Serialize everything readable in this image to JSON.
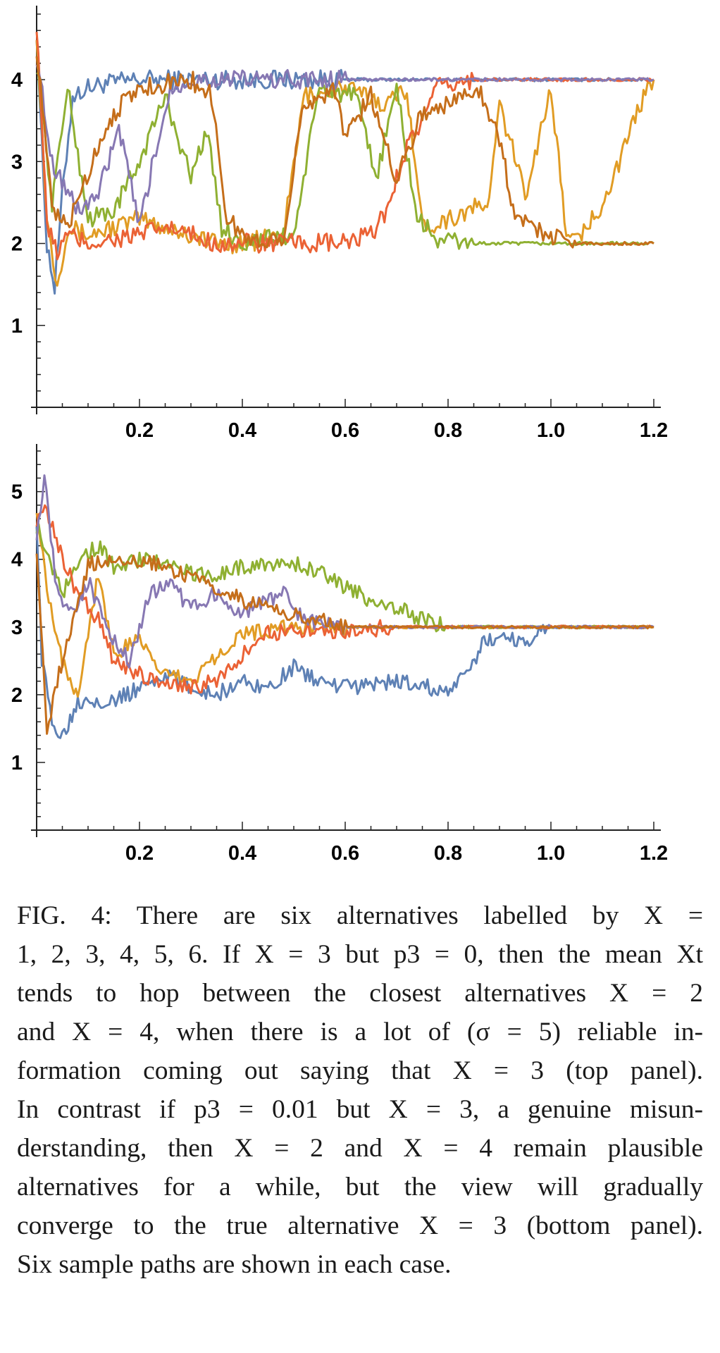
{
  "chart_data": [
    {
      "type": "line",
      "panel": "top",
      "xlim": [
        0,
        1.2
      ],
      "ylim": [
        0,
        4.8
      ],
      "xticks": [
        "0.2",
        "0.4",
        "0.6",
        "0.8",
        "1.0",
        "1.2"
      ],
      "yticks": [
        "1",
        "2",
        "3",
        "4"
      ],
      "grid": false,
      "series": [
        {
          "color": "#5e81b5",
          "points": [
            [
              0,
              4.6
            ],
            [
              0.01,
              3.2
            ],
            [
              0.02,
              2.0
            ],
            [
              0.035,
              1.45
            ],
            [
              0.05,
              2.6
            ],
            [
              0.07,
              3.8
            ],
            [
              0.1,
              3.9
            ],
            [
              0.13,
              3.95
            ],
            [
              0.2,
              4.0
            ],
            [
              0.3,
              4.0
            ],
            [
              0.4,
              4.0
            ],
            [
              0.6,
              4.0
            ],
            [
              0.8,
              4.0
            ],
            [
              1.0,
              4.0
            ],
            [
              1.2,
              4.0
            ]
          ]
        },
        {
          "color": "#e19c24",
          "points": [
            [
              0,
              4.6
            ],
            [
              0.02,
              2.3
            ],
            [
              0.04,
              1.5
            ],
            [
              0.06,
              2.2
            ],
            [
              0.1,
              2.1
            ],
            [
              0.2,
              2.3
            ],
            [
              0.3,
              2.1
            ],
            [
              0.35,
              2.0
            ],
            [
              0.4,
              2.0
            ],
            [
              0.48,
              2.1
            ],
            [
              0.52,
              3.8
            ],
            [
              0.6,
              3.9
            ],
            [
              0.68,
              3.7
            ],
            [
              0.72,
              3.9
            ],
            [
              0.75,
              2.2
            ],
            [
              0.8,
              2.3
            ],
            [
              0.88,
              2.5
            ],
            [
              0.9,
              3.7
            ],
            [
              0.95,
              2.6
            ],
            [
              1.0,
              3.9
            ],
            [
              1.03,
              2.1
            ],
            [
              1.06,
              2.1
            ],
            [
              1.1,
              2.5
            ],
            [
              1.14,
              3.1
            ],
            [
              1.18,
              3.8
            ],
            [
              1.2,
              4.0
            ]
          ]
        },
        {
          "color": "#8fb032",
          "points": [
            [
              0,
              4.2
            ],
            [
              0.03,
              2.5
            ],
            [
              0.06,
              3.9
            ],
            [
              0.1,
              2.3
            ],
            [
              0.15,
              2.4
            ],
            [
              0.2,
              3.0
            ],
            [
              0.25,
              3.8
            ],
            [
              0.3,
              2.8
            ],
            [
              0.33,
              3.4
            ],
            [
              0.36,
              2.2
            ],
            [
              0.4,
              2.0
            ],
            [
              0.5,
              2.1
            ],
            [
              0.55,
              3.9
            ],
            [
              0.62,
              3.8
            ],
            [
              0.66,
              2.8
            ],
            [
              0.7,
              3.9
            ],
            [
              0.74,
              2.3
            ],
            [
              0.78,
              2.05
            ],
            [
              0.85,
              2.0
            ],
            [
              1.0,
              2.0
            ],
            [
              1.2,
              2.0
            ]
          ]
        },
        {
          "color": "#eb6235",
          "points": [
            [
              0,
              4.7
            ],
            [
              0.01,
              3.5
            ],
            [
              0.02,
              2.2
            ],
            [
              0.04,
              1.9
            ],
            [
              0.06,
              2.1
            ],
            [
              0.1,
              2.0
            ],
            [
              0.2,
              2.1
            ],
            [
              0.25,
              2.2
            ],
            [
              0.3,
              2.1
            ],
            [
              0.35,
              2.0
            ],
            [
              0.4,
              2.0
            ],
            [
              0.6,
              2.0
            ],
            [
              0.65,
              2.1
            ],
            [
              0.68,
              2.4
            ],
            [
              0.72,
              3.2
            ],
            [
              0.75,
              3.5
            ],
            [
              0.78,
              3.9
            ],
            [
              0.85,
              4.0
            ],
            [
              1.0,
              4.0
            ],
            [
              1.2,
              4.0
            ]
          ]
        },
        {
          "color": "#8778b3",
          "points": [
            [
              0,
              4.3
            ],
            [
              0.03,
              3.0
            ],
            [
              0.08,
              2.4
            ],
            [
              0.12,
              2.6
            ],
            [
              0.16,
              3.4
            ],
            [
              0.2,
              2.2
            ],
            [
              0.22,
              2.8
            ],
            [
              0.26,
              3.9
            ],
            [
              0.3,
              4.0
            ],
            [
              0.4,
              4.0
            ],
            [
              0.6,
              4.0
            ],
            [
              0.8,
              4.0
            ],
            [
              1.0,
              4.0
            ],
            [
              1.2,
              4.0
            ]
          ]
        },
        {
          "color": "#c56e1a",
          "points": [
            [
              0,
              4.4
            ],
            [
              0.03,
              2.4
            ],
            [
              0.06,
              2.2
            ],
            [
              0.09,
              2.7
            ],
            [
              0.12,
              3.2
            ],
            [
              0.15,
              3.6
            ],
            [
              0.2,
              3.9
            ],
            [
              0.3,
              4.0
            ],
            [
              0.34,
              3.8
            ],
            [
              0.37,
              2.3
            ],
            [
              0.42,
              2.0
            ],
            [
              0.48,
              2.1
            ],
            [
              0.52,
              3.7
            ],
            [
              0.58,
              3.9
            ],
            [
              0.6,
              3.3
            ],
            [
              0.65,
              3.8
            ],
            [
              0.7,
              2.8
            ],
            [
              0.75,
              3.6
            ],
            [
              0.8,
              3.7
            ],
            [
              0.86,
              3.9
            ],
            [
              0.9,
              3.3
            ],
            [
              0.93,
              2.3
            ],
            [
              0.97,
              2.2
            ],
            [
              1.0,
              2.1
            ],
            [
              1.05,
              2.0
            ],
            [
              1.2,
              2.0
            ]
          ]
        }
      ]
    },
    {
      "type": "line",
      "panel": "bottom",
      "xlim": [
        0,
        1.2
      ],
      "ylim": [
        0,
        5.6
      ],
      "xticks": [
        "0.2",
        "0.4",
        "0.6",
        "0.8",
        "1.0",
        "1.2"
      ],
      "yticks": [
        "1",
        "2",
        "3",
        "4",
        "5"
      ],
      "grid": false,
      "series": [
        {
          "color": "#5e81b5",
          "points": [
            [
              0,
              4.6
            ],
            [
              0.01,
              2.5
            ],
            [
              0.03,
              1.6
            ],
            [
              0.05,
              1.4
            ],
            [
              0.08,
              1.9
            ],
            [
              0.1,
              1.95
            ],
            [
              0.15,
              1.9
            ],
            [
              0.2,
              2.1
            ],
            [
              0.25,
              2.3
            ],
            [
              0.3,
              2.1
            ],
            [
              0.35,
              2.0
            ],
            [
              0.4,
              2.2
            ],
            [
              0.45,
              2.1
            ],
            [
              0.5,
              2.4
            ],
            [
              0.55,
              2.2
            ],
            [
              0.6,
              2.1
            ],
            [
              0.7,
              2.2
            ],
            [
              0.8,
              2.05
            ],
            [
              0.84,
              2.3
            ],
            [
              0.87,
              2.8
            ],
            [
              0.9,
              2.85
            ],
            [
              0.95,
              2.8
            ],
            [
              1.0,
              3.0
            ],
            [
              1.1,
              3.0
            ],
            [
              1.2,
              3.0
            ]
          ]
        },
        {
          "color": "#e19c24",
          "points": [
            [
              0,
              4.8
            ],
            [
              0.02,
              3.6
            ],
            [
              0.05,
              2.5
            ],
            [
              0.08,
              2.0
            ],
            [
              0.12,
              3.8
            ],
            [
              0.15,
              2.6
            ],
            [
              0.2,
              2.8
            ],
            [
              0.25,
              2.3
            ],
            [
              0.3,
              2.2
            ],
            [
              0.35,
              2.6
            ],
            [
              0.4,
              2.9
            ],
            [
              0.5,
              3.0
            ],
            [
              0.6,
              3.0
            ],
            [
              1.2,
              3.0
            ]
          ]
        },
        {
          "color": "#8fb032",
          "points": [
            [
              0,
              4.5
            ],
            [
              0.02,
              4.1
            ],
            [
              0.05,
              3.5
            ],
            [
              0.08,
              4.0
            ],
            [
              0.12,
              4.2
            ],
            [
              0.15,
              3.9
            ],
            [
              0.2,
              4.0
            ],
            [
              0.25,
              3.95
            ],
            [
              0.3,
              3.8
            ],
            [
              0.35,
              3.75
            ],
            [
              0.4,
              3.9
            ],
            [
              0.5,
              3.95
            ],
            [
              0.55,
              3.8
            ],
            [
              0.6,
              3.6
            ],
            [
              0.65,
              3.4
            ],
            [
              0.7,
              3.3
            ],
            [
              0.75,
              3.1
            ],
            [
              0.8,
              3.0
            ],
            [
              1.2,
              3.0
            ]
          ]
        },
        {
          "color": "#eb6235",
          "points": [
            [
              0,
              4.6
            ],
            [
              0.02,
              4.7
            ],
            [
              0.05,
              4.0
            ],
            [
              0.08,
              3.5
            ],
            [
              0.12,
              3.1
            ],
            [
              0.15,
              2.5
            ],
            [
              0.2,
              2.3
            ],
            [
              0.25,
              2.2
            ],
            [
              0.3,
              2.1
            ],
            [
              0.35,
              2.2
            ],
            [
              0.4,
              2.6
            ],
            [
              0.45,
              2.9
            ],
            [
              0.5,
              2.95
            ],
            [
              0.6,
              2.95
            ],
            [
              0.7,
              3.0
            ],
            [
              1.2,
              3.0
            ]
          ]
        },
        {
          "color": "#8778b3",
          "points": [
            [
              0,
              4.4
            ],
            [
              0.015,
              5.2
            ],
            [
              0.04,
              3.5
            ],
            [
              0.07,
              3.2
            ],
            [
              0.1,
              3.7
            ],
            [
              0.14,
              2.9
            ],
            [
              0.18,
              2.5
            ],
            [
              0.22,
              3.5
            ],
            [
              0.26,
              3.6
            ],
            [
              0.3,
              3.3
            ],
            [
              0.35,
              3.5
            ],
            [
              0.4,
              3.2
            ],
            [
              0.48,
              3.5
            ],
            [
              0.52,
              3.1
            ],
            [
              0.6,
              3.0
            ],
            [
              1.2,
              3.0
            ]
          ]
        },
        {
          "color": "#c56e1a",
          "points": [
            [
              0,
              4.2
            ],
            [
              0.02,
              1.5
            ],
            [
              0.04,
              2.2
            ],
            [
              0.07,
              3.0
            ],
            [
              0.1,
              3.9
            ],
            [
              0.13,
              4.0
            ],
            [
              0.2,
              4.0
            ],
            [
              0.28,
              3.8
            ],
            [
              0.35,
              3.6
            ],
            [
              0.4,
              3.4
            ],
            [
              0.45,
              3.3
            ],
            [
              0.5,
              3.2
            ],
            [
              0.55,
              3.1
            ],
            [
              0.6,
              3.0
            ],
            [
              1.2,
              3.0
            ]
          ]
        }
      ]
    }
  ],
  "caption": {
    "lines": [
      "FIG. 4: There are six alternatives labelled by X =",
      "1, 2, 3, 4, 5, 6. If X = 3 but p3 = 0, then the mean Xt",
      "tends to hop between the closest alternatives X = 2",
      "and X = 4, when there is a lot of (σ = 5) reliable in-",
      "formation coming out saying that X = 3 (top panel).",
      "In contrast if p3 = 0.01 but X = 3, a genuine misun-",
      "derstanding, then X = 2 and X = 4 remain plausible",
      "alternatives for a while, but the view will gradually",
      "converge to the true alternative X = 3 (bottom panel).",
      "Six sample paths are shown in each case."
    ]
  }
}
